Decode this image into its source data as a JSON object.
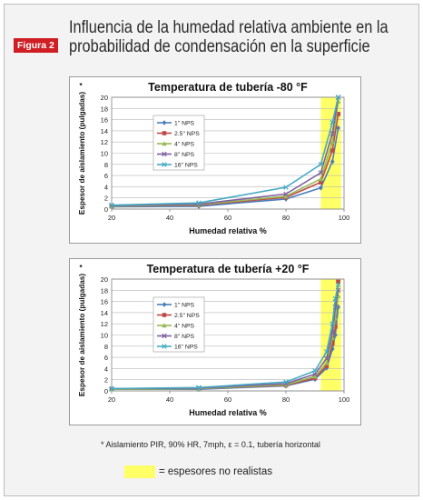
{
  "figure": {
    "label": "Figura 2",
    "title_line1": "Influencia de la humedad relativa ambiente en la",
    "title_line2": "probabilidad de condensación en la superficie",
    "footnote": "* Aislamiento PIR, 90% HR, 7mph, ε = 0.1, tubería horizontal",
    "highlight_note": "= espesores no realistas",
    "highlight_color": "#ffff66"
  },
  "chart_data": [
    {
      "type": "line",
      "title": "Temperatura de tubería -80 °F",
      "xlabel": "Humedad relativa %",
      "ylabel": "Espesor de aislamiento (pulgadas)",
      "ylabel_marker": "*",
      "xlim": [
        20,
        100
      ],
      "ylim": [
        0,
        20
      ],
      "xticks": [
        20,
        40,
        60,
        80,
        100
      ],
      "yticks": [
        0,
        2,
        4,
        6,
        8,
        10,
        12,
        14,
        16,
        18,
        20
      ],
      "highlight_range": [
        92,
        99
      ],
      "grid": true,
      "legend_position": "left",
      "series": [
        {
          "name": "1\" NPS",
          "color": "#4a7ebb",
          "marker": "diamond",
          "x": [
            20,
            50,
            80,
            92,
            96,
            98
          ],
          "y": [
            0.4,
            0.5,
            1.8,
            3.8,
            8.5,
            14.5
          ]
        },
        {
          "name": "2.5\" NPS",
          "color": "#be4b48",
          "marker": "square",
          "x": [
            20,
            50,
            80,
            92,
            96,
            98
          ],
          "y": [
            0.5,
            0.7,
            2.1,
            4.8,
            10.5,
            17.0
          ]
        },
        {
          "name": "4\" NPS",
          "color": "#98b954",
          "marker": "triangle",
          "x": [
            20,
            50,
            80,
            92,
            96,
            98
          ],
          "y": [
            0.5,
            0.8,
            2.3,
            5.4,
            12.0,
            19.3
          ]
        },
        {
          "name": "8\" NPS",
          "color": "#7d60a0",
          "marker": "x",
          "x": [
            20,
            50,
            80,
            92,
            96,
            98
          ],
          "y": [
            0.6,
            0.9,
            2.7,
            6.5,
            13.5,
            20.0
          ]
        },
        {
          "name": "16\" NPS",
          "color": "#46aac4",
          "marker": "x",
          "x": [
            20,
            50,
            80,
            92,
            96,
            98
          ],
          "y": [
            0.7,
            1.1,
            3.9,
            8.0,
            15.5,
            20.0
          ]
        }
      ]
    },
    {
      "type": "line",
      "title": "Temperatura de tubería +20 °F",
      "xlabel": "Humedad relativa %",
      "ylabel": "Espesor de aislamiento (pulgadas)",
      "ylabel_marker": "*",
      "xlim": [
        20,
        100
      ],
      "ylim": [
        0,
        20
      ],
      "xticks": [
        20,
        40,
        60,
        80,
        100
      ],
      "yticks": [
        0,
        2,
        4,
        6,
        8,
        10,
        12,
        14,
        16,
        18,
        20
      ],
      "highlight_range": [
        92,
        99
      ],
      "grid": true,
      "legend_position": "left",
      "series": [
        {
          "name": "1\" NPS",
          "color": "#4a7ebb",
          "marker": "diamond",
          "x": [
            20,
            50,
            80,
            90,
            94,
            96,
            97,
            98
          ],
          "y": [
            0.3,
            0.3,
            0.9,
            2.1,
            4.1,
            7.5,
            10.0,
            15.0
          ]
        },
        {
          "name": "2.5\" NPS",
          "color": "#be4b48",
          "marker": "square",
          "x": [
            20,
            50,
            80,
            90,
            94,
            96,
            97,
            98
          ],
          "y": [
            0.3,
            0.4,
            1.0,
            2.3,
            4.5,
            8.5,
            11.5,
            19.5
          ]
        },
        {
          "name": "4\" NPS",
          "color": "#98b954",
          "marker": "triangle",
          "x": [
            20,
            50,
            80,
            90,
            94,
            96,
            97,
            98
          ],
          "y": [
            0.3,
            0.4,
            1.1,
            2.6,
            5.0,
            9.5,
            13.0,
            17.0
          ]
        },
        {
          "name": "8\" NPS",
          "color": "#7d60a0",
          "marker": "x",
          "x": [
            20,
            50,
            80,
            90,
            94,
            96,
            97,
            98
          ],
          "y": [
            0.4,
            0.5,
            1.3,
            3.0,
            5.8,
            10.5,
            15.0,
            18.0
          ]
        },
        {
          "name": "16\" NPS",
          "color": "#46aac4",
          "marker": "x",
          "x": [
            20,
            50,
            80,
            90,
            94,
            96,
            97,
            98
          ],
          "y": [
            0.4,
            0.6,
            1.6,
            3.6,
            7.0,
            12.0,
            16.5,
            19.0
          ]
        }
      ]
    }
  ]
}
